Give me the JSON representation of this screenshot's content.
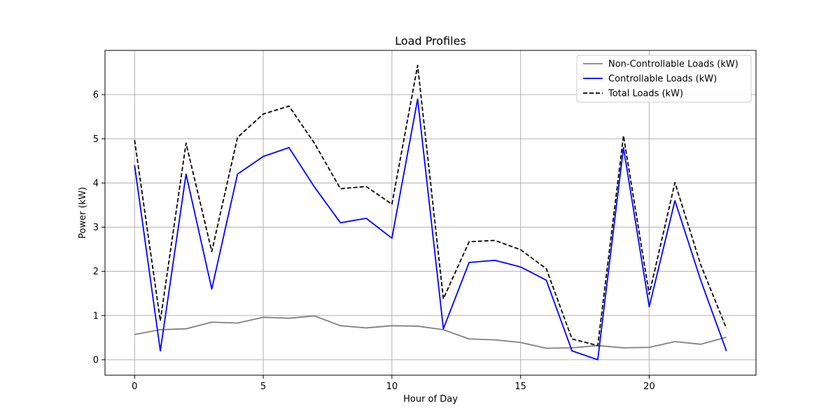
{
  "chart_data": {
    "type": "line",
    "title": "Load Profiles",
    "xlabel": "Hour of Day",
    "ylabel": "Power (kW)",
    "xlim": [
      -1.15,
      24.15
    ],
    "ylim": [
      -0.35,
      7.0
    ],
    "xticks": [
      0,
      5,
      10,
      15,
      20
    ],
    "yticks": [
      0,
      1,
      2,
      3,
      4,
      5,
      6
    ],
    "grid": true,
    "legend_position": "top-right",
    "x": [
      0,
      1,
      2,
      3,
      4,
      5,
      6,
      7,
      8,
      9,
      10,
      11,
      12,
      13,
      14,
      15,
      16,
      17,
      18,
      19,
      20,
      21,
      22,
      23
    ],
    "series": [
      {
        "name": "Non-Controllable Loads (kW)",
        "color": "#808080",
        "dash": "solid",
        "values": [
          0.57,
          0.68,
          0.7,
          0.85,
          0.83,
          0.96,
          0.94,
          0.99,
          0.77,
          0.72,
          0.77,
          0.76,
          0.68,
          0.47,
          0.45,
          0.39,
          0.26,
          0.27,
          0.32,
          0.27,
          0.28,
          0.41,
          0.35,
          0.51
        ]
      },
      {
        "name": "Controllable Loads (kW)",
        "color": "#0000ff",
        "dash": "solid",
        "values": [
          4.4,
          0.2,
          4.2,
          1.6,
          4.2,
          4.6,
          4.8,
          3.9,
          3.1,
          3.2,
          2.75,
          5.9,
          0.7,
          2.2,
          2.25,
          2.1,
          1.8,
          0.2,
          0.0,
          4.8,
          1.2,
          3.6,
          1.8,
          0.2
        ]
      },
      {
        "name": "Total Loads (kW)",
        "color": "#000000",
        "dash": "dashed",
        "values": [
          4.97,
          0.88,
          4.9,
          2.45,
          5.03,
          5.56,
          5.74,
          4.89,
          3.87,
          3.92,
          3.52,
          6.66,
          1.38,
          2.67,
          2.7,
          2.49,
          2.06,
          0.47,
          0.32,
          5.07,
          1.48,
          4.01,
          2.15,
          0.71
        ]
      }
    ]
  }
}
